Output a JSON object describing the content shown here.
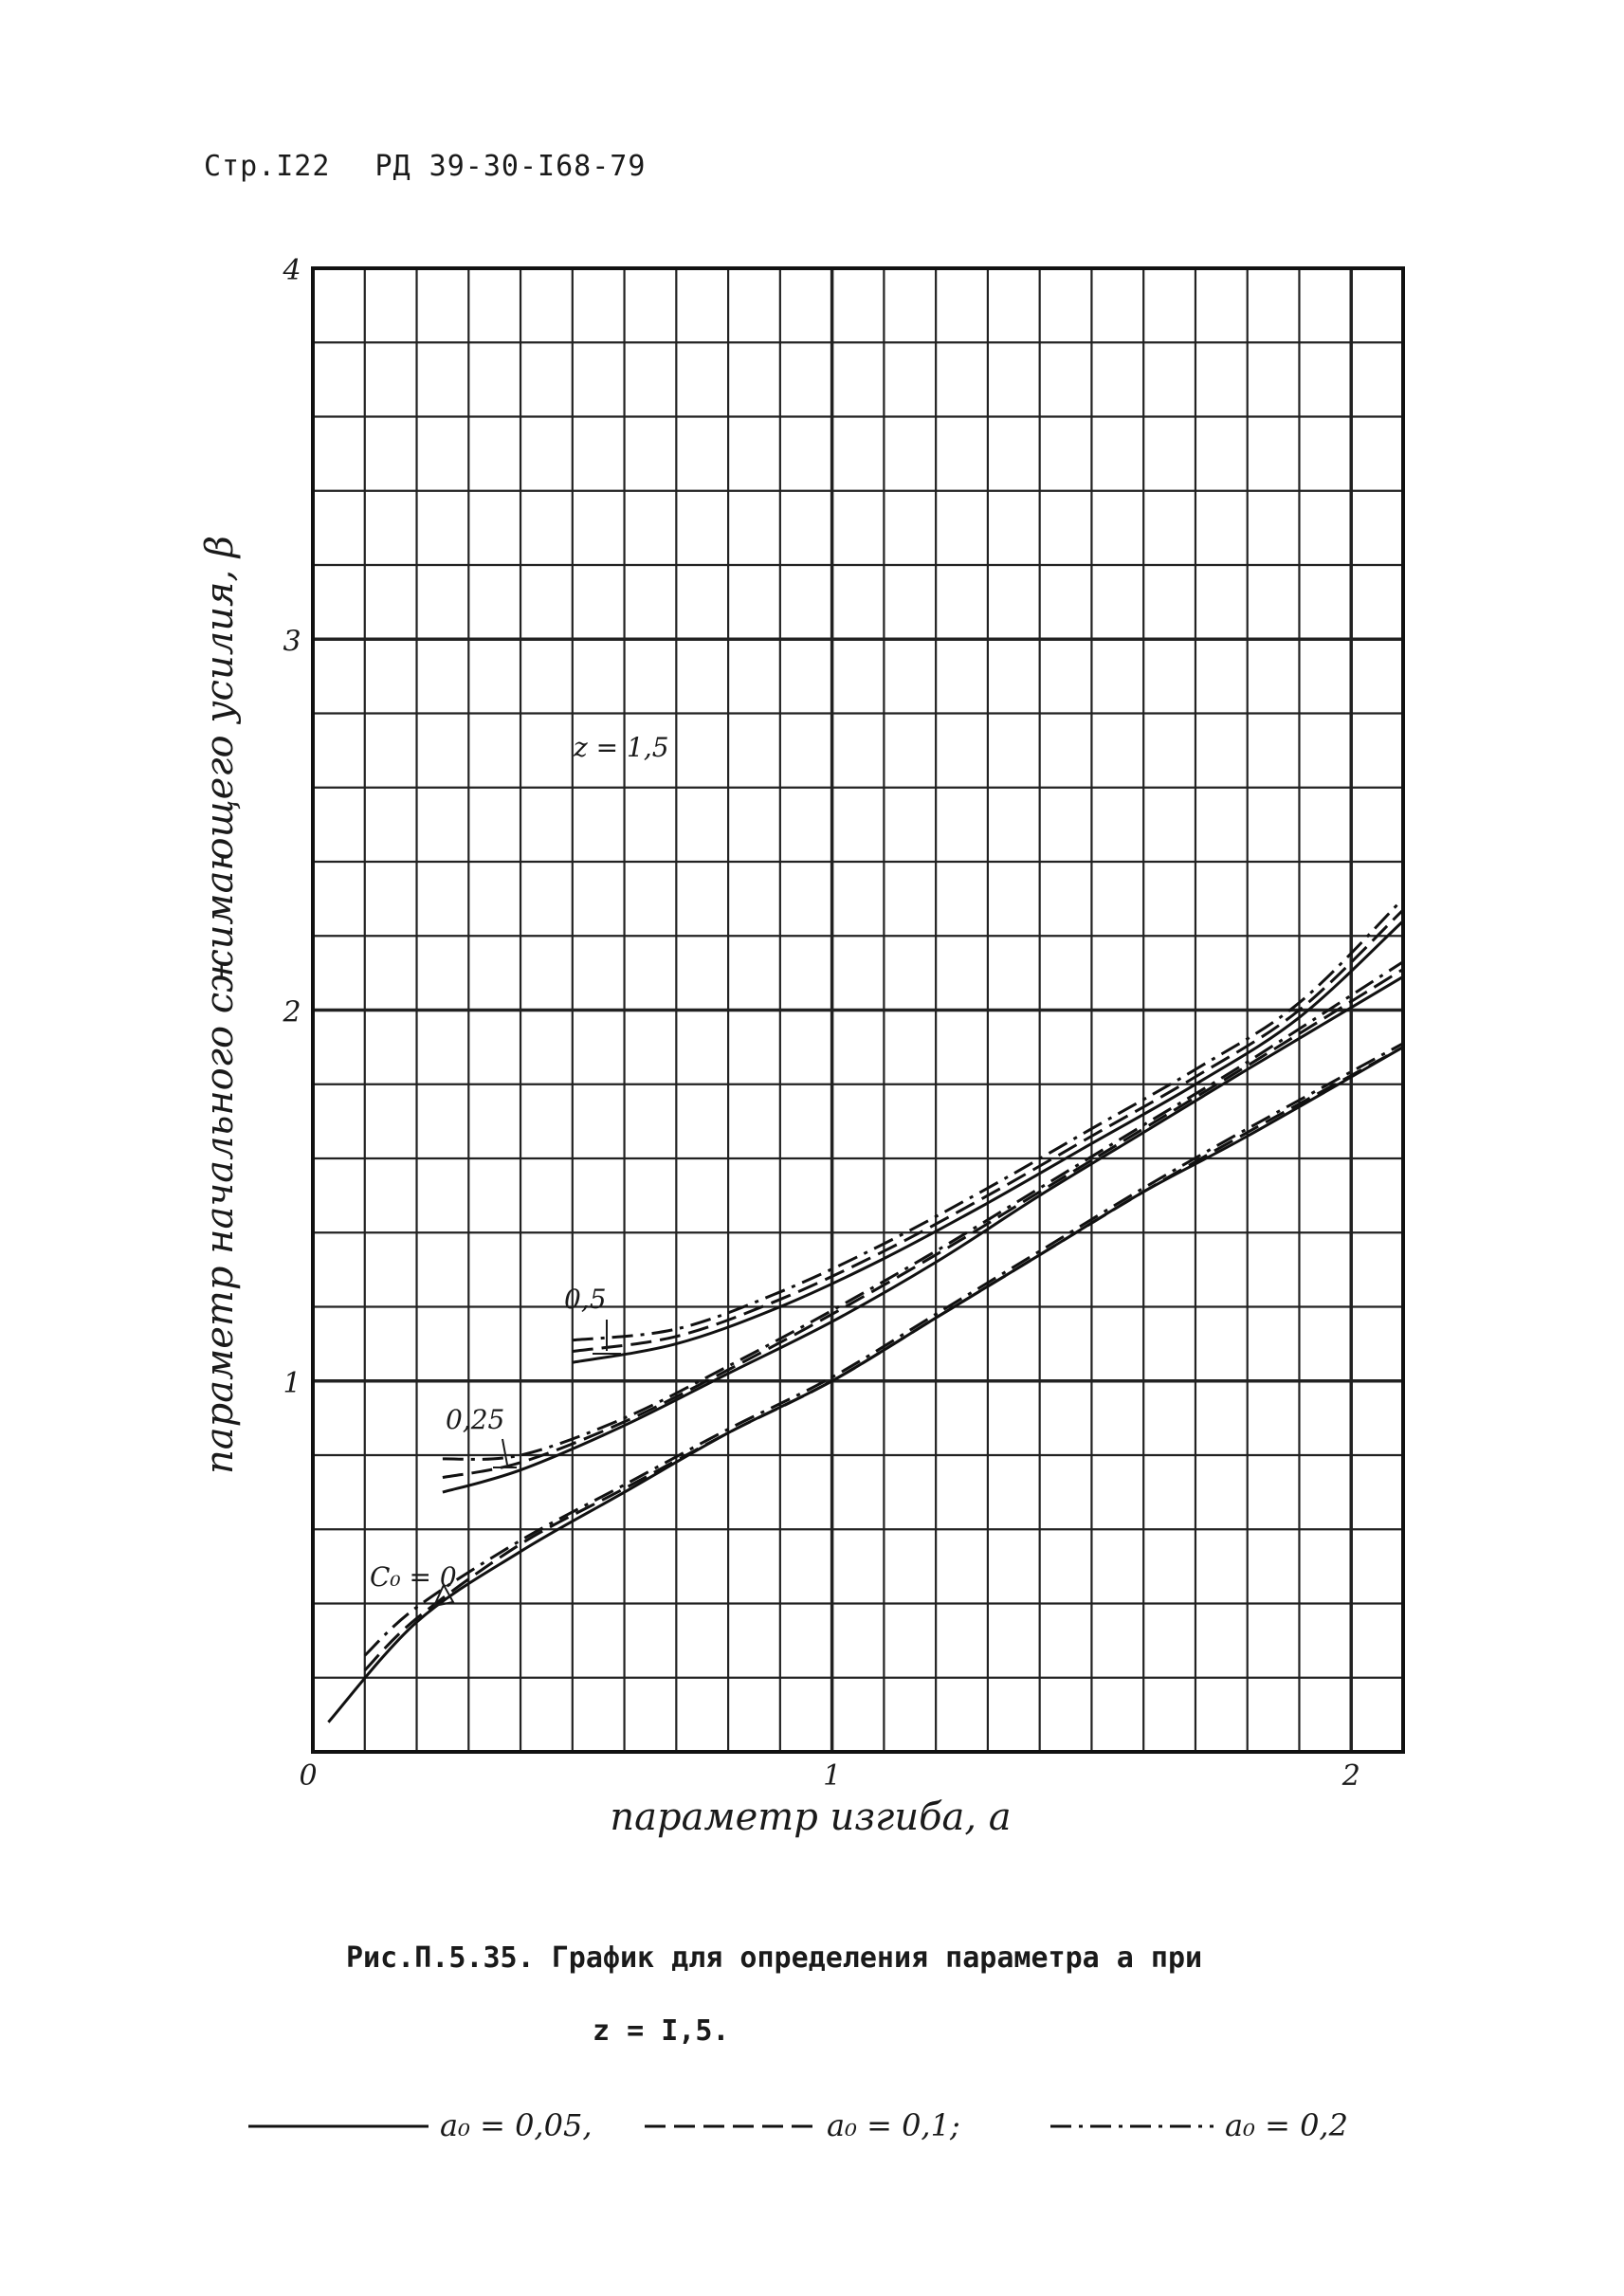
{
  "header": {
    "page": "Стр.I22",
    "doc": "РД 39-30-I68-79"
  },
  "chart_data": {
    "type": "line",
    "xlabel": "параметр изгиба, a",
    "ylabel": "параметр начального сжимающего усилия, β",
    "xlim": [
      0,
      2.1
    ],
    "ylim": [
      0,
      4
    ],
    "x_tick_labels": [
      "0",
      "1",
      "2"
    ],
    "x_ticks": [
      0,
      1,
      2
    ],
    "y_tick_labels": [
      "1",
      "2",
      "3",
      "4"
    ],
    "y_ticks": [
      1,
      2,
      3,
      4
    ],
    "grid": true,
    "annotation_z": "z = 1,5",
    "curve_labels": [
      "C₀ = 0",
      "0,25",
      "0,5"
    ],
    "series": [
      {
        "group": "C₀ = 0",
        "style": "solid",
        "x": [
          0.03,
          0.2,
          0.4,
          0.6,
          0.8,
          1.0,
          1.2,
          1.4,
          1.6,
          1.8,
          2.1
        ],
        "y": [
          0.08,
          0.35,
          0.54,
          0.7,
          0.86,
          1.0,
          1.17,
          1.34,
          1.51,
          1.66,
          1.9
        ]
      },
      {
        "group": "C₀ = 0",
        "style": "dashed",
        "x": [
          0.1,
          0.2,
          0.4,
          0.6,
          0.8,
          1.0,
          1.2,
          1.4,
          1.6,
          1.8,
          2.1
        ],
        "y": [
          0.22,
          0.36,
          0.56,
          0.71,
          0.86,
          1.0,
          1.17,
          1.34,
          1.51,
          1.67,
          1.9
        ]
      },
      {
        "group": "C₀ = 0",
        "style": "dash-dot",
        "x": [
          0.1,
          0.2,
          0.4,
          0.6,
          0.8,
          1.0,
          1.2,
          1.4,
          1.6,
          1.8,
          2.1
        ],
        "y": [
          0.26,
          0.39,
          0.57,
          0.72,
          0.87,
          1.01,
          1.18,
          1.35,
          1.52,
          1.68,
          1.91
        ]
      },
      {
        "group": "0,25",
        "style": "solid",
        "x": [
          0.25,
          0.4,
          0.6,
          0.8,
          1.0,
          1.2,
          1.4,
          1.6,
          1.8,
          2.1
        ],
        "y": [
          0.7,
          0.76,
          0.88,
          1.02,
          1.16,
          1.32,
          1.5,
          1.67,
          1.84,
          2.09
        ]
      },
      {
        "group": "0,25",
        "style": "dashed",
        "x": [
          0.25,
          0.4,
          0.6,
          0.8,
          1.0,
          1.2,
          1.4,
          1.6,
          1.8,
          2.1
        ],
        "y": [
          0.74,
          0.78,
          0.89,
          1.03,
          1.18,
          1.34,
          1.51,
          1.68,
          1.85,
          2.11
        ]
      },
      {
        "group": "0,25",
        "style": "dash-dot",
        "x": [
          0.25,
          0.4,
          0.6,
          0.8,
          1.0,
          1.2,
          1.4,
          1.6,
          1.8,
          2.1
        ],
        "y": [
          0.79,
          0.8,
          0.9,
          1.04,
          1.19,
          1.35,
          1.52,
          1.69,
          1.86,
          2.13
        ]
      },
      {
        "group": "0,5",
        "style": "solid",
        "x": [
          0.5,
          0.7,
          0.9,
          1.1,
          1.3,
          1.5,
          1.7,
          1.9,
          2.1
        ],
        "y": [
          1.05,
          1.1,
          1.2,
          1.33,
          1.48,
          1.64,
          1.8,
          1.98,
          2.24
        ]
      },
      {
        "group": "0,5",
        "style": "dashed",
        "x": [
          0.5,
          0.7,
          0.9,
          1.1,
          1.3,
          1.5,
          1.7,
          1.9,
          2.1
        ],
        "y": [
          1.08,
          1.12,
          1.22,
          1.35,
          1.5,
          1.66,
          1.82,
          2.0,
          2.27
        ]
      },
      {
        "group": "0,5",
        "style": "dash-dot",
        "x": [
          0.5,
          0.7,
          0.9,
          1.1,
          1.3,
          1.5,
          1.7,
          1.9,
          2.1
        ],
        "y": [
          1.11,
          1.14,
          1.24,
          1.37,
          1.52,
          1.68,
          1.84,
          2.02,
          2.3
        ]
      }
    ]
  },
  "caption": {
    "line1": "Рис.П.5.35. График для определения параметра  a  при",
    "line2": "z  = I,5."
  },
  "legend": {
    "items": [
      {
        "style": "solid",
        "label": "a₀ = 0,05,"
      },
      {
        "style": "dashed",
        "label": "a₀ = 0,1;"
      },
      {
        "style": "dash-dot",
        "label": "a₀ = 0,2"
      }
    ]
  }
}
